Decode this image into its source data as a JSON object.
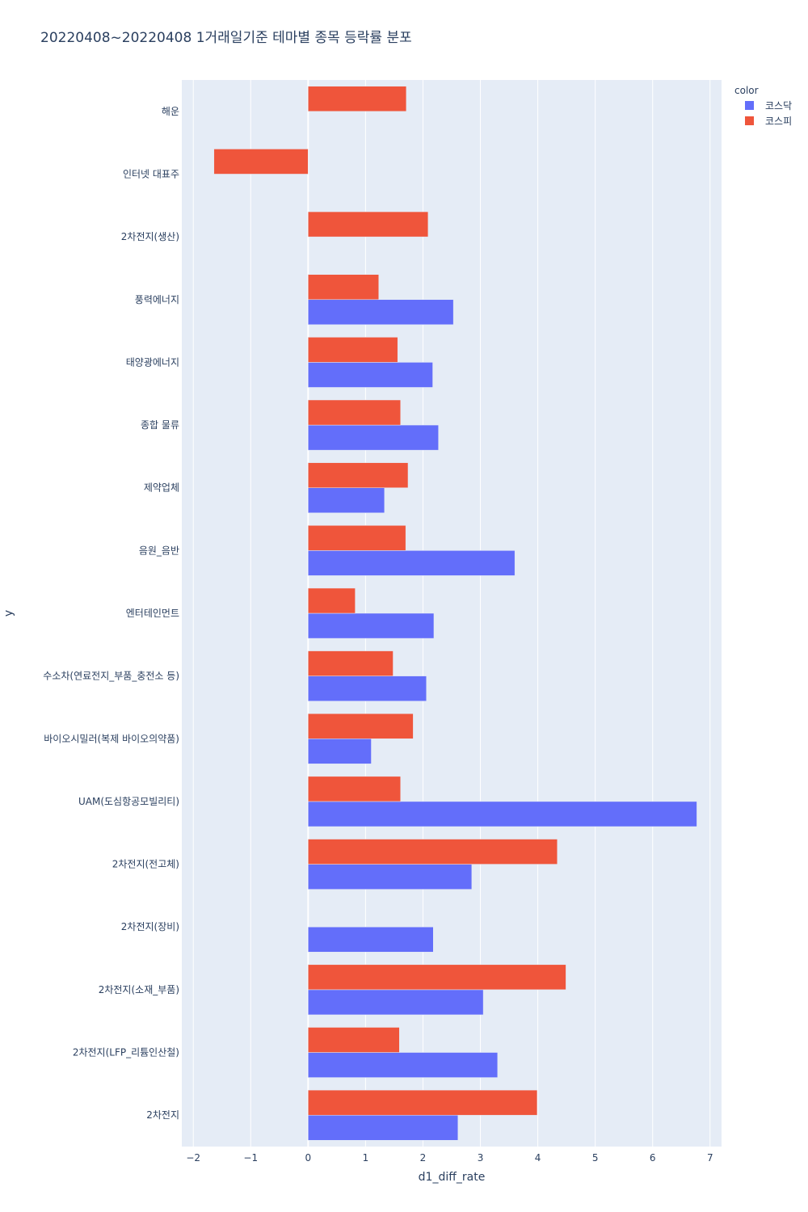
{
  "chart_data": {
    "type": "bar",
    "orientation": "horizontal",
    "title": "20220408~20220408 1거래일기준 테마별 종목 등락률 분포",
    "xlabel": "d1_diff_rate",
    "ylabel": "y",
    "xlim": [
      -2.2,
      7.2
    ],
    "xticks": [
      -2,
      -1,
      0,
      1,
      2,
      3,
      4,
      5,
      6,
      7
    ],
    "xtick_labels": [
      "−2",
      "−1",
      "0",
      "1",
      "2",
      "3",
      "4",
      "5",
      "6",
      "7"
    ],
    "grid": true,
    "legend": {
      "title": "color",
      "position": "top-right"
    },
    "categories": [
      "해운",
      "인터넷 대표주",
      "2차전지(생산)",
      "풍력에너지",
      "태양광에너지",
      "종합 물류",
      "제약업체",
      "음원_음반",
      "엔터테인먼트",
      "수소차(연료전지_부품_충전소 등)",
      "바이오시밀러(복제 바이오의약품)",
      "UAM(도심항공모빌리티)",
      "2차전지(전고체)",
      "2차전지(장비)",
      "2차전지(소재_부품)",
      "2차전지(LFP_리튬인산철)",
      "2차전지"
    ],
    "series": [
      {
        "name": "코스닥",
        "color": "#636efa",
        "values": [
          null,
          null,
          null,
          2.53,
          2.17,
          2.27,
          1.33,
          3.6,
          2.19,
          2.06,
          1.1,
          6.77,
          2.85,
          2.18,
          3.05,
          3.3,
          2.61
        ]
      },
      {
        "name": "코스피",
        "color": "#ef553b",
        "values": [
          1.71,
          -1.64,
          2.09,
          1.23,
          1.56,
          1.61,
          1.74,
          1.7,
          0.82,
          1.48,
          1.83,
          1.61,
          4.34,
          null,
          4.49,
          1.59,
          3.99
        ]
      }
    ]
  }
}
